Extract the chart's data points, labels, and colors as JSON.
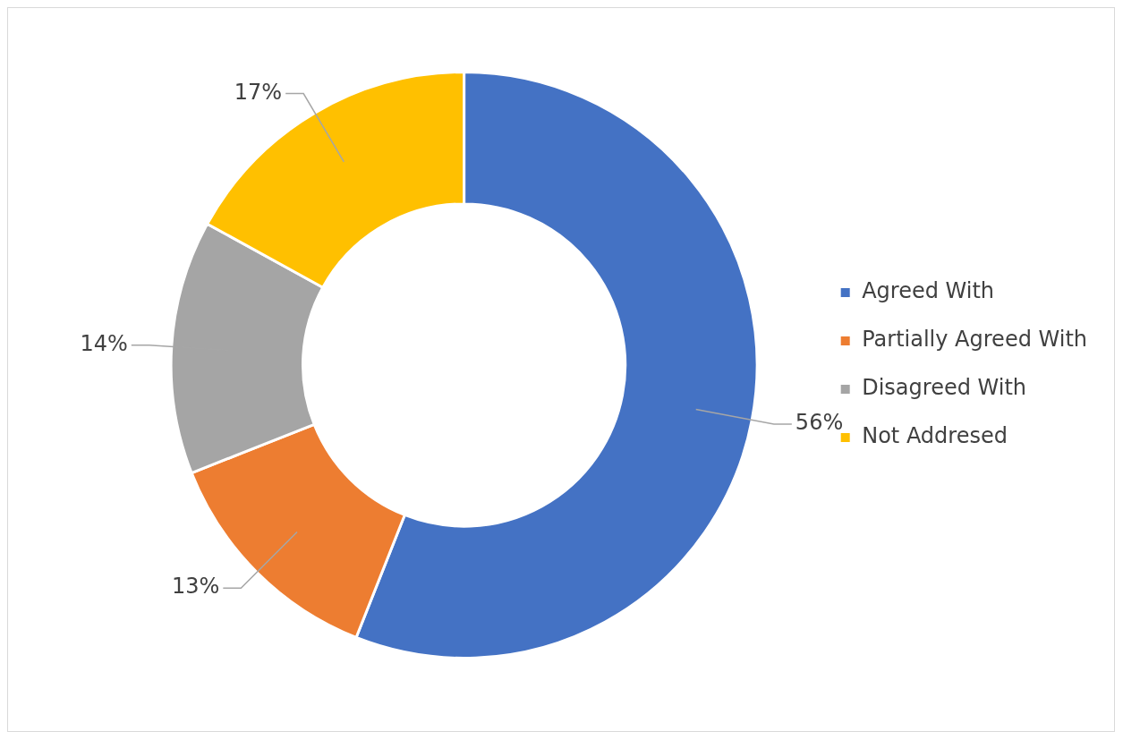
{
  "chart_data": {
    "type": "donut",
    "categories": [
      "Agreed With",
      "Partially Agreed With",
      "Disagreed With",
      "Not Addresed"
    ],
    "values": [
      56,
      13,
      14,
      17
    ],
    "colors": [
      "#4472c4",
      "#ed7d31",
      "#a5a5a5",
      "#ffc000"
    ],
    "value_labels": [
      "56%",
      "13%",
      "14%",
      "17%"
    ],
    "legend": "right"
  }
}
